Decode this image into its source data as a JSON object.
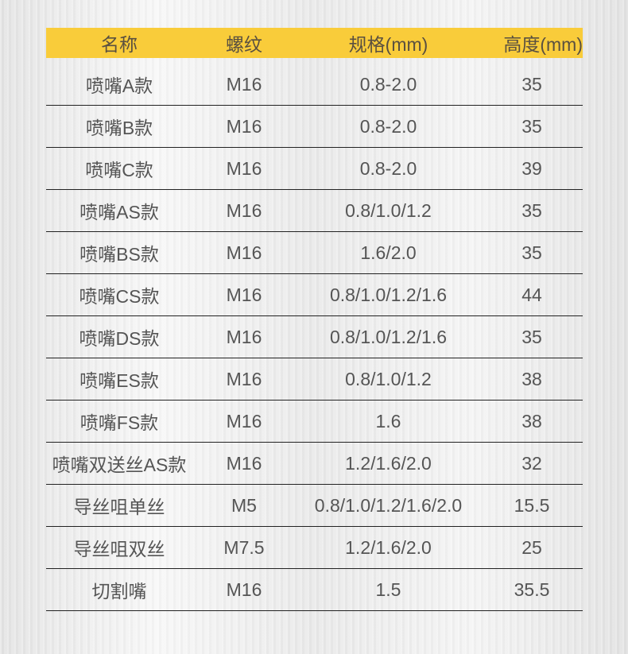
{
  "table": {
    "header_color": "#f9cc3a",
    "headers": [
      "名称",
      "螺纹",
      "规格(mm)",
      "高度(mm)"
    ],
    "rows": [
      [
        "喷嘴A款",
        "M16",
        "0.8-2.0",
        "35"
      ],
      [
        "喷嘴B款",
        "M16",
        "0.8-2.0",
        "35"
      ],
      [
        "喷嘴C款",
        "M16",
        "0.8-2.0",
        "39"
      ],
      [
        "喷嘴AS款",
        "M16",
        "0.8/1.0/1.2",
        "35"
      ],
      [
        "喷嘴BS款",
        "M16",
        "1.6/2.0",
        "35"
      ],
      [
        "喷嘴CS款",
        "M16",
        "0.8/1.0/1.2/1.6",
        "44"
      ],
      [
        "喷嘴DS款",
        "M16",
        "0.8/1.0/1.2/1.6",
        "35"
      ],
      [
        "喷嘴ES款",
        "M16",
        "0.8/1.0/1.2",
        "38"
      ],
      [
        "喷嘴FS款",
        "M16",
        "1.6",
        "38"
      ],
      [
        "喷嘴双送丝AS款",
        "M16",
        "1.2/1.6/2.0",
        "32"
      ],
      [
        "导丝咀单丝",
        "M5",
        "0.8/1.0/1.2/1.6/2.0",
        "15.5"
      ],
      [
        "导丝咀双丝",
        "M7.5",
        "1.2/1.6/2.0",
        "25"
      ],
      [
        "切割嘴",
        "M16",
        "1.5",
        "35.5"
      ]
    ]
  }
}
